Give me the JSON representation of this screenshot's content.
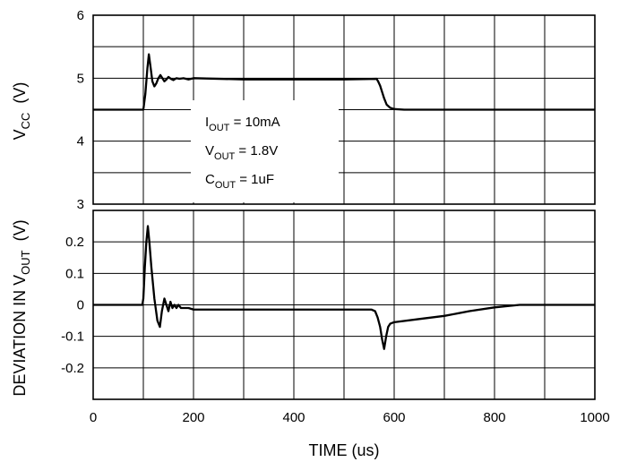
{
  "chart_data": [
    {
      "type": "line",
      "panel": "top",
      "ylabel": {
        "main": "V",
        "sub": "CC",
        "unit": "(V)"
      },
      "xlim": [
        0,
        1000
      ],
      "ylim": [
        3,
        6
      ],
      "yticks": [
        "3",
        "4",
        "5",
        "6"
      ],
      "grid": true,
      "annotations": [
        {
          "main": "I",
          "sub": "OUT",
          "rest": " = 10mA"
        },
        {
          "main": "V",
          "sub": "OUT",
          "rest": " = 1.8V"
        },
        {
          "main": "C",
          "sub": "OUT",
          "rest": " = 1uF"
        }
      ],
      "series": [
        {
          "x": [
            0,
            100,
            104,
            108,
            111,
            114,
            118,
            122,
            126,
            130,
            134,
            138,
            142,
            146,
            150,
            155,
            160,
            166,
            172,
            180,
            190,
            200,
            300,
            400,
            500,
            565,
            568,
            572,
            576,
            580,
            585,
            592,
            600,
            620,
            700,
            800,
            900,
            1000
          ],
          "y": [
            4.5,
            4.5,
            4.75,
            5.15,
            5.38,
            5.2,
            4.95,
            4.87,
            4.92,
            5.0,
            5.05,
            5.0,
            4.95,
            4.98,
            5.02,
            4.99,
            4.97,
            5.0,
            4.99,
            5.0,
            4.98,
            5.0,
            4.98,
            4.98,
            4.98,
            4.99,
            4.95,
            4.88,
            4.78,
            4.68,
            4.58,
            4.53,
            4.51,
            4.5,
            4.5,
            4.5,
            4.5,
            4.5
          ]
        }
      ]
    },
    {
      "type": "line",
      "panel": "bottom",
      "ylabel": {
        "main": "DEVIATION IN V",
        "sub": "OUT",
        "unit": "(V)"
      },
      "xlabel": "TIME (us)",
      "xlim": [
        0,
        1000
      ],
      "ylim": [
        -0.3,
        0.3
      ],
      "xticks": [
        "0",
        "200",
        "400",
        "600",
        "800",
        "1000"
      ],
      "yticks": [
        "-0.2",
        "-0.1",
        "0",
        "0.1",
        "0.2"
      ],
      "grid": true,
      "series": [
        {
          "x": [
            0,
            98,
            100,
            103,
            106,
            109,
            112,
            116,
            122,
            128,
            133,
            137,
            142,
            146,
            150,
            154,
            158,
            162,
            166,
            170,
            175,
            180,
            190,
            200,
            300,
            400,
            500,
            555,
            562,
            567,
            572,
            576,
            580,
            584,
            588,
            592,
            600,
            650,
            700,
            750,
            800,
            850,
            900,
            950,
            1000
          ],
          "y": [
            0.0,
            0.0,
            0.02,
            0.12,
            0.2,
            0.25,
            0.2,
            0.12,
            0.02,
            -0.05,
            -0.07,
            -0.02,
            0.02,
            0.0,
            -0.02,
            0.01,
            -0.01,
            0.0,
            -0.01,
            0.0,
            -0.01,
            -0.01,
            -0.01,
            -0.015,
            -0.015,
            -0.015,
            -0.015,
            -0.015,
            -0.02,
            -0.04,
            -0.07,
            -0.11,
            -0.14,
            -0.1,
            -0.07,
            -0.06,
            -0.055,
            -0.045,
            -0.035,
            -0.02,
            -0.008,
            0.0,
            0.0,
            0.0,
            0.0
          ]
        }
      ]
    }
  ]
}
